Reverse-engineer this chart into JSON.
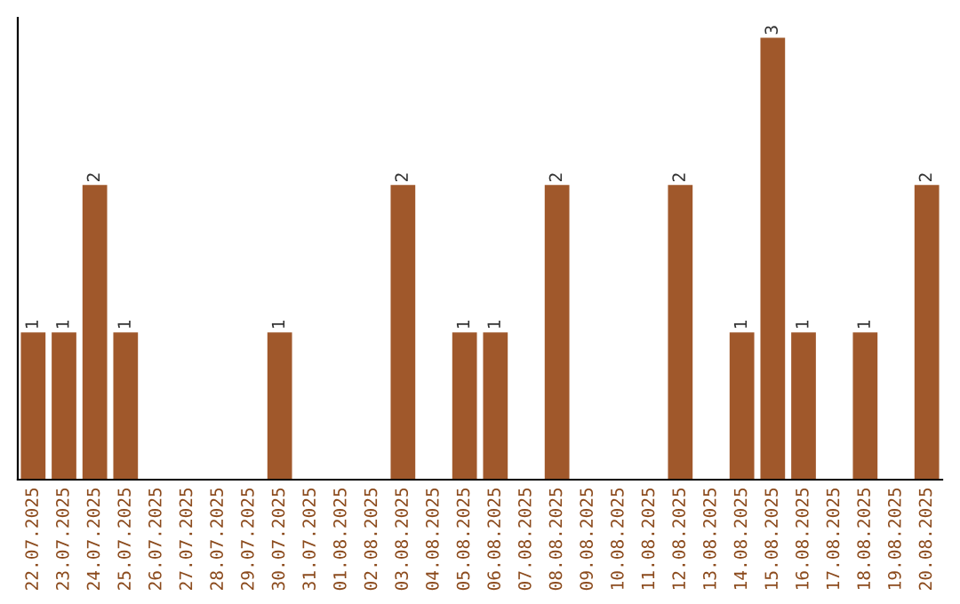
{
  "chart_data": {
    "type": "bar",
    "categories": [
      "22.07.2025",
      "23.07.2025",
      "24.07.2025",
      "25.07.2025",
      "26.07.2025",
      "27.07.2025",
      "28.07.2025",
      "29.07.2025",
      "30.07.2025",
      "31.07.2025",
      "01.08.2025",
      "02.08.2025",
      "03.08.2025",
      "04.08.2025",
      "05.08.2025",
      "06.08.2025",
      "07.08.2025",
      "08.08.2025",
      "09.08.2025",
      "10.08.2025",
      "11.08.2025",
      "12.08.2025",
      "13.08.2025",
      "14.08.2025",
      "15.08.2025",
      "16.08.2025",
      "17.08.2025",
      "18.08.2025",
      "19.08.2025",
      "20.08.2025"
    ],
    "values": [
      1,
      1,
      2,
      1,
      0,
      0,
      0,
      0,
      1,
      0,
      0,
      0,
      2,
      0,
      1,
      1,
      0,
      2,
      0,
      0,
      0,
      2,
      0,
      1,
      3,
      1,
      0,
      1,
      0,
      2
    ],
    "value_labels": [
      "1",
      "1",
      "2",
      "1",
      null,
      null,
      null,
      null,
      "1",
      null,
      null,
      null,
      "2",
      null,
      "1",
      "1",
      null,
      "2",
      null,
      null,
      null,
      "2",
      null,
      "1",
      "3",
      "1",
      null,
      "1",
      null,
      "2"
    ],
    "color": "#a0582b",
    "grid": false,
    "legend": false
  }
}
